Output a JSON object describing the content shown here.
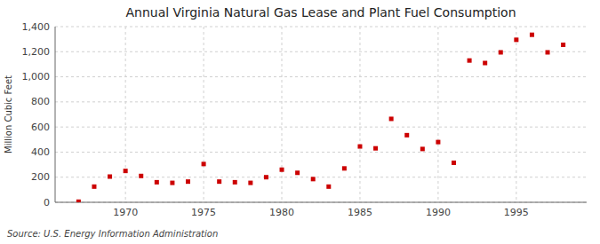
{
  "chart_data": {
    "type": "scatter",
    "title": "Annual Virginia Natural Gas Lease and Plant Fuel Consumption",
    "y_label": "Million Cubic Feet",
    "annotations": [
      "Source: U.S. Energy Information Administration"
    ],
    "x": [
      1967,
      1968,
      1969,
      1970,
      1971,
      1972,
      1973,
      1974,
      1975,
      1976,
      1977,
      1978,
      1979,
      1980,
      1981,
      1982,
      1983,
      1984,
      1985,
      1986,
      1987,
      1988,
      1989,
      1990,
      1991,
      1992,
      1993,
      1994,
      1995,
      1996,
      1997,
      1998
    ],
    "values": [
      5,
      125,
      205,
      250,
      210,
      160,
      155,
      165,
      305,
      165,
      160,
      155,
      200,
      260,
      235,
      185,
      125,
      270,
      445,
      430,
      665,
      535,
      425,
      480,
      315,
      1130,
      1110,
      1195,
      1295,
      1335,
      1195,
      1255
    ],
    "color": "#cc0000",
    "marker": "square",
    "xlim": [
      1965.5,
      1999.5
    ],
    "xticks": [
      1970,
      1975,
      1980,
      1985,
      1990,
      1995
    ],
    "ylim": [
      0,
      1400
    ],
    "yticks": [
      0,
      200,
      400,
      600,
      800,
      {
        "value": 1000,
        "label": "1,000"
      },
      {
        "value": 1200,
        "label": "1,200"
      },
      {
        "value": 1400,
        "label": "1,400"
      }
    ],
    "grid": true
  }
}
